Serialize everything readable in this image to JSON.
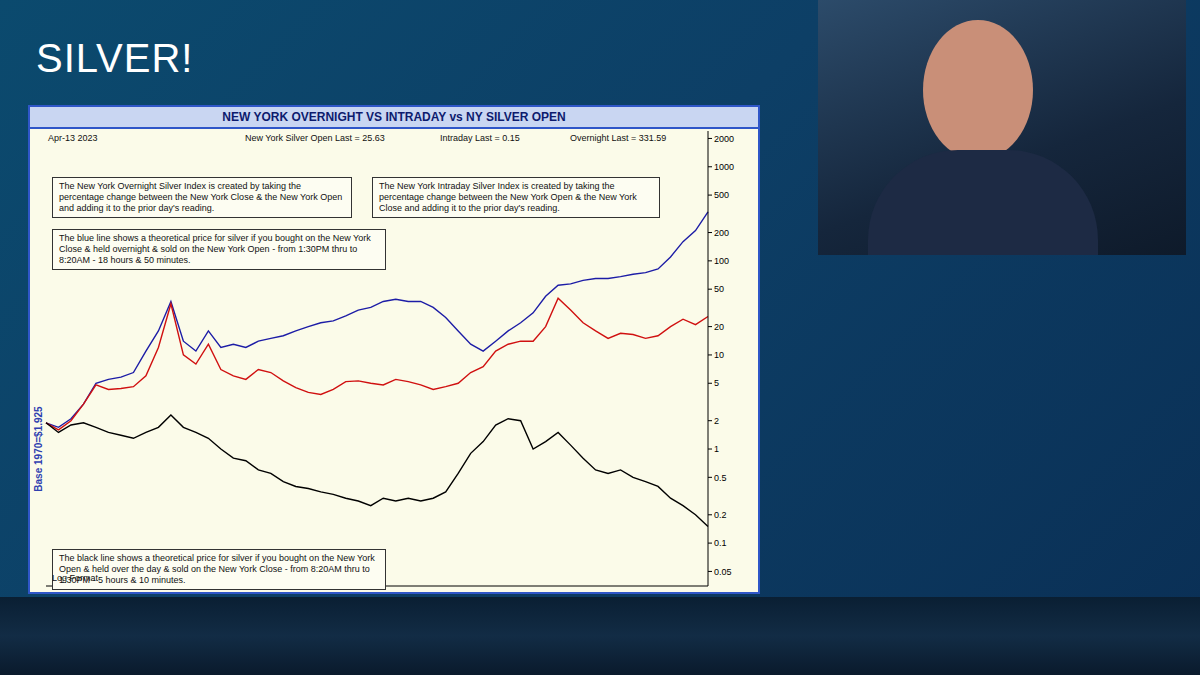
{
  "page_title": "SILVER!",
  "chart_data": {
    "type": "line",
    "title": "NEW YORK OVERNIGHT VS INTRADAY vs NY SILVER OPEN",
    "date": "Apr-13 2023",
    "stats": [
      "New York Silver Open Last = 25.63",
      "Intraday Last = 0.15",
      "Overnight Last = 331.59"
    ],
    "annotations": [
      "The New York Overnight Silver Index is created by taking the percentage change between the New York Close & the New York Open and adding it to the prior day's reading.",
      "The New York Intraday Silver Index is created by taking the percentage change between the New York Open & the New York Close and adding it to the prior day's reading.",
      "The blue line shows a theoretical price for silver if you bought on the New York Close & held overnight & sold on the New York Open - from 1:30PM thru to 8:20AM - 18 hours & 50 minutes.",
      "The black line shows a theoretical price for silver if you bought on the New York Open & held over the day & sold on the New York Close - from 8:20AM thru to 1:30PM - 5 hours & 10 minutes."
    ],
    "scale_note": "Log Format",
    "ylabel": "Base 1970=$1.925",
    "categories": [
      null,
      null,
      null,
      null,
      null,
      null,
      null,
      null,
      null,
      null,
      null,
      null,
      null,
      null,
      null,
      null,
      null,
      null,
      null,
      null,
      null,
      null,
      null,
      null,
      null,
      null,
      null,
      null,
      null,
      null,
      null,
      null,
      null,
      null,
      null,
      null,
      null,
      null,
      null,
      null,
      null,
      null,
      null,
      null,
      null,
      null,
      null,
      null,
      null,
      null,
      null,
      null,
      null,
      null
    ],
    "series": [
      {
        "color": "#1c1ca6",
        "values": [
          1.9,
          1.7,
          2.1,
          3,
          5,
          5.5,
          5.8,
          6.5,
          11,
          18,
          37,
          14,
          11,
          18,
          12,
          13,
          12,
          14,
          15,
          16,
          18,
          20,
          22,
          23,
          26,
          30,
          32,
          37,
          39,
          37,
          37,
          32,
          25,
          18,
          13,
          11,
          14,
          18,
          22,
          28,
          42,
          55,
          57,
          62,
          65,
          65,
          68,
          72,
          75,
          82,
          110,
          160,
          210,
          331.59
        ]
      },
      {
        "color": "#d01010",
        "values": [
          1.9,
          1.6,
          2,
          3,
          4.8,
          4.3,
          4.4,
          4.6,
          6,
          12,
          35,
          10,
          8,
          13,
          7,
          6,
          5.5,
          7,
          6.5,
          5.3,
          4.5,
          4,
          3.8,
          4.3,
          5.2,
          5.3,
          5,
          4.8,
          5.5,
          5.2,
          4.8,
          4.3,
          4.6,
          5,
          6.5,
          7.5,
          11,
          13,
          14,
          14,
          20,
          40,
          30,
          22,
          18,
          15,
          17,
          16.5,
          15,
          16,
          20,
          24,
          21,
          25.63
        ]
      },
      {
        "color": "#000000",
        "values": [
          1.9,
          1.5,
          1.8,
          1.9,
          1.7,
          1.5,
          1.4,
          1.3,
          1.5,
          1.7,
          2.3,
          1.7,
          1.5,
          1.3,
          1,
          0.8,
          0.75,
          0.6,
          0.55,
          0.45,
          0.4,
          0.38,
          0.35,
          0.33,
          0.3,
          0.28,
          0.25,
          0.3,
          0.28,
          0.3,
          0.28,
          0.3,
          0.35,
          0.55,
          0.9,
          1.2,
          1.8,
          2.1,
          2,
          1,
          1.2,
          1.5,
          1.1,
          0.8,
          0.6,
          0.55,
          0.6,
          0.5,
          0.45,
          0.4,
          0.3,
          0.25,
          0.2,
          0.15
        ]
      }
    ],
    "ylim": [
      0.035,
      2400
    ],
    "yticks": [
      0.05,
      0.1,
      0.2,
      0.5,
      1,
      2,
      5,
      10,
      20,
      50,
      100,
      200,
      500,
      1000,
      2000
    ],
    "log": "y",
    "grid": false,
    "tick_labels": "y"
  }
}
